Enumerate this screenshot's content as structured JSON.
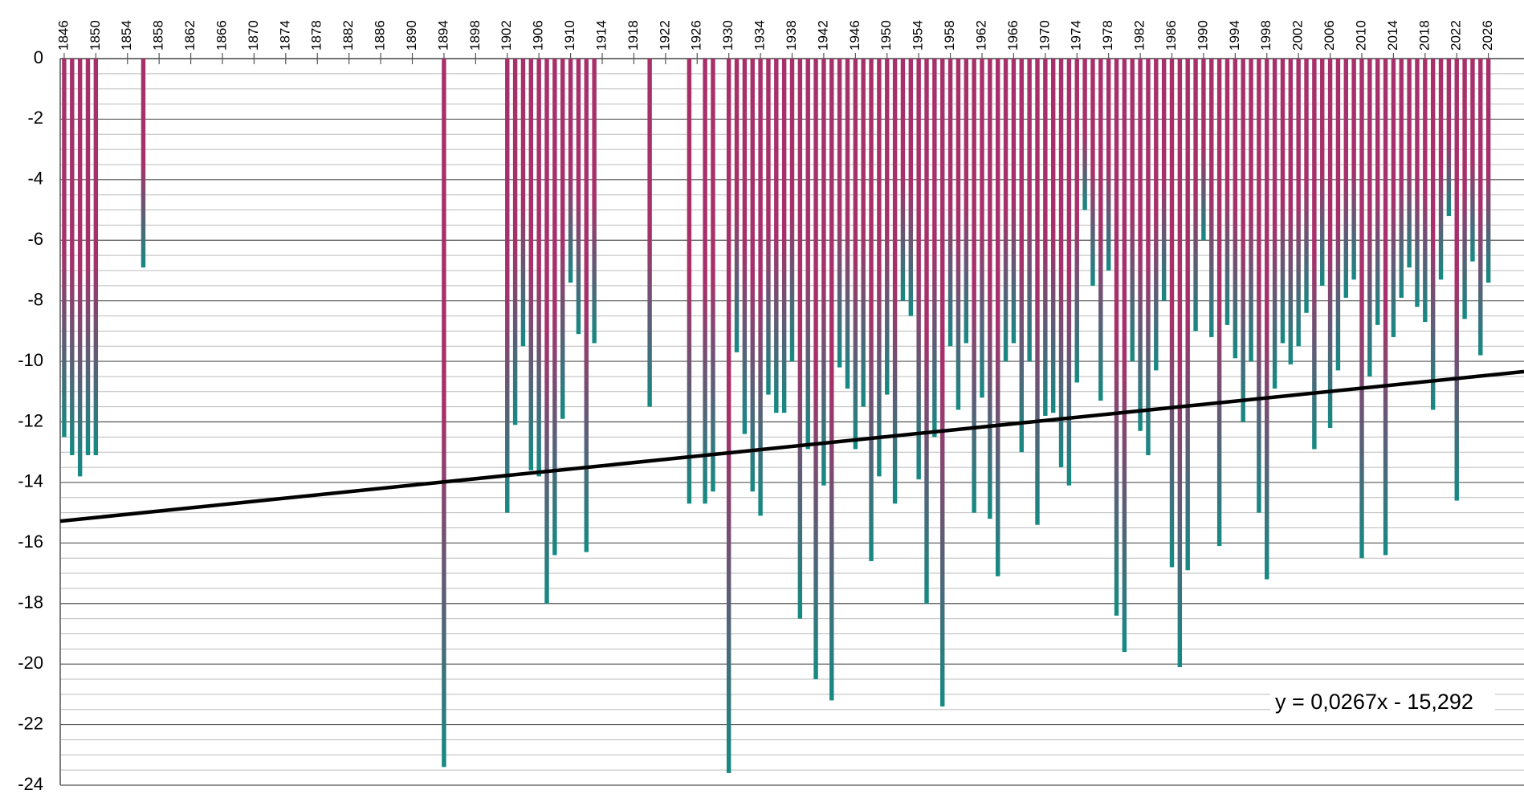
{
  "chart_data": {
    "type": "bar",
    "x": [
      1846,
      1847,
      1848,
      1849,
      1850,
      1856,
      1894,
      1902,
      1903,
      1904,
      1905,
      1906,
      1907,
      1908,
      1909,
      1910,
      1911,
      1912,
      1913,
      1920,
      1925,
      1927,
      1928,
      1930,
      1931,
      1932,
      1933,
      1934,
      1935,
      1936,
      1937,
      1938,
      1939,
      1940,
      1941,
      1942,
      1943,
      1944,
      1945,
      1946,
      1947,
      1948,
      1949,
      1950,
      1951,
      1952,
      1953,
      1954,
      1955,
      1956,
      1957,
      1958,
      1959,
      1960,
      1961,
      1962,
      1963,
      1964,
      1965,
      1966,
      1967,
      1968,
      1969,
      1970,
      1971,
      1972,
      1973,
      1974,
      1975,
      1976,
      1977,
      1978,
      1979,
      1980,
      1981,
      1982,
      1983,
      1984,
      1985,
      1986,
      1987,
      1988,
      1989,
      1990,
      1991,
      1992,
      1993,
      1994,
      1995,
      1996,
      1997,
      1998,
      1999,
      2000,
      2001,
      2002,
      2003,
      2004,
      2005,
      2006,
      2007,
      2008,
      2009,
      2010,
      2011,
      2012,
      2013,
      2014,
      2015,
      2016,
      2017,
      2018,
      2019,
      2020,
      2021,
      2022,
      2023,
      2024,
      2025,
      2026
    ],
    "values": [
      -12.5,
      -13.1,
      -13.8,
      -13.1,
      -13.1,
      -6.9,
      -23.4,
      -15.0,
      -12.1,
      -9.5,
      -13.6,
      -13.8,
      -18.0,
      -16.4,
      -11.9,
      -7.4,
      -9.1,
      -16.3,
      -9.4,
      -11.5,
      -14.7,
      -14.7,
      -14.3,
      -23.6,
      -9.7,
      -12.4,
      -14.3,
      -15.1,
      -11.1,
      -11.7,
      -11.7,
      -10.0,
      -18.5,
      -12.9,
      -20.5,
      -14.1,
      -21.2,
      -10.2,
      -10.9,
      -12.9,
      -11.5,
      -16.6,
      -13.8,
      -11.1,
      -14.7,
      -8.0,
      -8.5,
      -13.9,
      -18.0,
      -12.5,
      -21.4,
      -9.5,
      -11.6,
      -9.4,
      -15.0,
      -11.2,
      -15.2,
      -17.1,
      -10.0,
      -9.4,
      -13.0,
      -10.0,
      -15.4,
      -11.8,
      -11.7,
      -13.5,
      -14.1,
      -10.7,
      -5.0,
      -7.5,
      -11.3,
      -7.0,
      -18.4,
      -19.6,
      -10.0,
      -12.3,
      -13.1,
      -10.3,
      -8.0,
      -16.8,
      -20.1,
      -16.9,
      -9.0,
      -6.0,
      -9.2,
      -16.1,
      -8.8,
      -9.9,
      -12.0,
      -10.0,
      -15.0,
      -17.2,
      -10.9,
      -9.4,
      -10.1,
      -9.5,
      -8.4,
      -12.9,
      -7.5,
      -12.2,
      -10.3,
      -7.9,
      -7.3,
      -16.5,
      -10.5,
      -8.8,
      -16.4,
      -9.2,
      -7.9,
      -6.9,
      -8.2,
      -8.7,
      -11.6,
      -7.3,
      -5.2,
      -14.6,
      -8.6,
      -6.7,
      -9.8,
      -7.4
    ],
    "gradient": [
      "#a8306a",
      "#148a83"
    ],
    "xlim": [
      1845.5,
      2030.5
    ],
    "xticks": [
      1846,
      1850,
      1854,
      1858,
      1862,
      1866,
      1870,
      1874,
      1878,
      1882,
      1886,
      1890,
      1894,
      1898,
      1902,
      1906,
      1910,
      1914,
      1918,
      1922,
      1926,
      1930,
      1934,
      1938,
      1942,
      1946,
      1950,
      1954,
      1958,
      1962,
      1966,
      1970,
      1974,
      1978,
      1982,
      1986,
      1990,
      1994,
      1998,
      2002,
      2006,
      2010,
      2014,
      2018,
      2022,
      2026
    ],
    "ylim": [
      -24,
      0
    ],
    "yticks": [
      0,
      -2,
      -4,
      -6,
      -8,
      -10,
      -12,
      -14,
      -16,
      -18,
      -20,
      -22,
      -24
    ],
    "grid": true,
    "trendline": {
      "slope": 0.0267,
      "intercept": -15.292,
      "label": "y = 0,0267x - 15,292",
      "color": "#000000"
    }
  }
}
